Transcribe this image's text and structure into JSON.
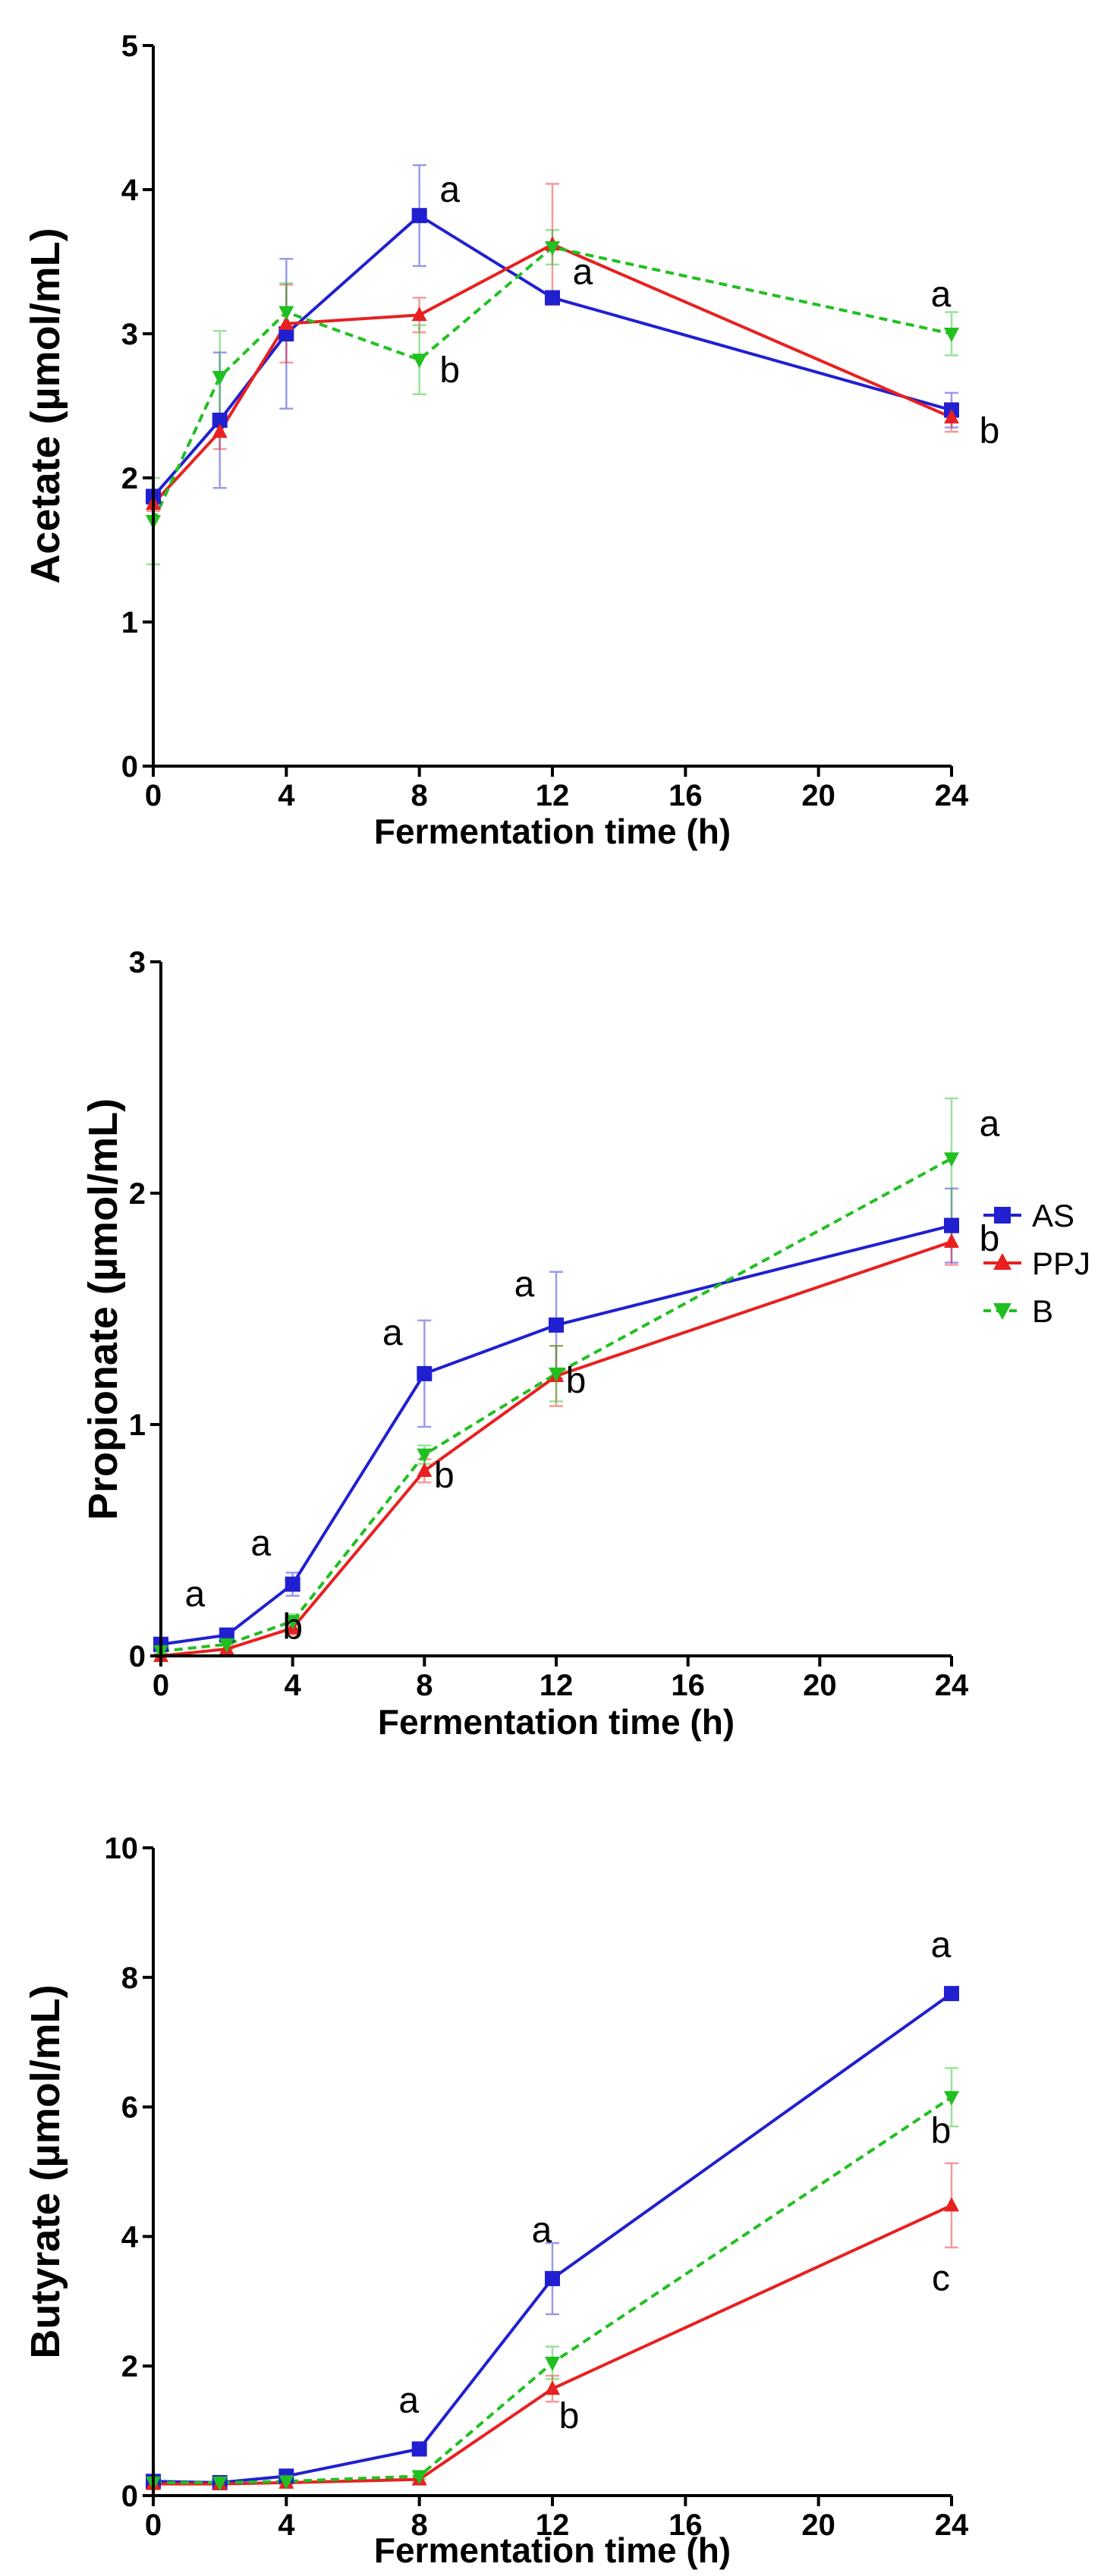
{
  "colors": {
    "AS": "#2020d0",
    "PPJ": "#e82020",
    "B": "#20c020"
  },
  "legend": {
    "items": [
      {
        "key": "AS",
        "label": "AS"
      },
      {
        "key": "PPJ",
        "label": "PPJ"
      },
      {
        "key": "B",
        "label": "B"
      }
    ]
  },
  "chart_data": [
    {
      "type": "line",
      "title": "",
      "xlabel": "Fermentation time (h)",
      "ylabel": "Acetate (µmol/mL)",
      "xlim": [
        0,
        24
      ],
      "ylim": [
        0,
        5
      ],
      "xticks": [
        0,
        4,
        8,
        12,
        16,
        20,
        24
      ],
      "yticks": [
        0,
        1,
        2,
        3,
        4,
        5
      ],
      "x": [
        0,
        2,
        4,
        8,
        12,
        24
      ],
      "series": [
        {
          "name": "AS",
          "marker": "square",
          "style": "solid",
          "values": [
            1.87,
            2.4,
            3.0,
            3.82,
            3.25,
            2.47
          ],
          "errors": [
            0.05,
            0.47,
            0.52,
            0.35,
            0.04,
            0.12
          ]
        },
        {
          "name": "PPJ",
          "marker": "triangle-up",
          "style": "solid",
          "values": [
            1.82,
            2.32,
            3.07,
            3.13,
            3.62,
            2.42
          ],
          "errors": [
            0.05,
            0.12,
            0.27,
            0.12,
            0.42,
            0.1
          ]
        },
        {
          "name": "B",
          "marker": "triangle-down",
          "style": "dashed",
          "values": [
            1.7,
            2.7,
            3.15,
            2.82,
            3.6,
            3.0
          ],
          "errors": [
            0.3,
            0.32,
            0.2,
            0.24,
            0.12,
            0.15
          ]
        }
      ],
      "annotations": [
        {
          "text": "a",
          "x": 8,
          "y": 3.82
        },
        {
          "text": "b",
          "x": 8,
          "y": 2.82
        },
        {
          "text": "a",
          "x": 12,
          "y": 3.25
        },
        {
          "text": "a",
          "x": 24,
          "y": 3.0
        },
        {
          "text": "b",
          "x": 24,
          "y": 2.42
        }
      ]
    },
    {
      "type": "line",
      "title": "",
      "xlabel": "Fermentation time (h)",
      "ylabel": "Propionate (µmol/mL)",
      "xlim": [
        0,
        24
      ],
      "ylim": [
        0,
        3
      ],
      "xticks": [
        0,
        4,
        8,
        12,
        16,
        20,
        24
      ],
      "yticks": [
        0,
        1,
        2,
        3
      ],
      "x": [
        0,
        2,
        4,
        8,
        12,
        24
      ],
      "series": [
        {
          "name": "AS",
          "marker": "square",
          "style": "solid",
          "values": [
            0.05,
            0.09,
            0.31,
            1.22,
            1.43,
            1.86
          ],
          "errors": [
            0.02,
            0.02,
            0.05,
            0.23,
            0.23,
            0.16
          ]
        },
        {
          "name": "PPJ",
          "marker": "triangle-up",
          "style": "solid",
          "values": [
            0.0,
            0.03,
            0.12,
            0.8,
            1.21,
            1.79
          ],
          "errors": [
            0.01,
            0.02,
            0.03,
            0.05,
            0.13,
            0.1
          ]
        },
        {
          "name": "B",
          "marker": "triangle-down",
          "style": "dashed",
          "values": [
            0.02,
            0.05,
            0.15,
            0.87,
            1.22,
            2.15
          ],
          "errors": [
            0.01,
            0.02,
            0.03,
            0.04,
            0.12,
            0.26
          ]
        }
      ],
      "annotations": [
        {
          "text": "a",
          "x": 2,
          "y": 0.09
        },
        {
          "text": "a",
          "x": 4,
          "y": 0.31
        },
        {
          "text": "b",
          "x": 4,
          "y": 0.12
        },
        {
          "text": "a",
          "x": 8,
          "y": 1.22
        },
        {
          "text": "b",
          "x": 8,
          "y": 0.8
        },
        {
          "text": "a",
          "x": 12,
          "y": 1.43
        },
        {
          "text": "b",
          "x": 12,
          "y": 1.21
        },
        {
          "text": "a",
          "x": 24,
          "y": 2.15
        },
        {
          "text": "b",
          "x": 24,
          "y": 1.79
        }
      ]
    },
    {
      "type": "line",
      "title": "",
      "xlabel": "Fermentation time (h)",
      "ylabel": "Butyrate (µmol/mL)",
      "xlim": [
        0,
        24
      ],
      "ylim": [
        0,
        10
      ],
      "xticks": [
        0,
        4,
        8,
        12,
        16,
        20,
        24
      ],
      "yticks": [
        0,
        2,
        4,
        6,
        8,
        10
      ],
      "x": [
        0,
        2,
        4,
        8,
        12,
        24
      ],
      "series": [
        {
          "name": "AS",
          "marker": "square",
          "style": "solid",
          "values": [
            0.22,
            0.2,
            0.3,
            0.72,
            3.35,
            7.75
          ],
          "errors": [
            0.05,
            0.04,
            0.05,
            0.08,
            0.55,
            0.08
          ]
        },
        {
          "name": "PPJ",
          "marker": "triangle-up",
          "style": "solid",
          "values": [
            0.18,
            0.18,
            0.2,
            0.25,
            1.65,
            4.48
          ],
          "errors": [
            0.03,
            0.03,
            0.03,
            0.05,
            0.2,
            0.65
          ]
        },
        {
          "name": "B",
          "marker": "triangle-down",
          "style": "dashed",
          "values": [
            0.2,
            0.2,
            0.22,
            0.3,
            2.05,
            6.15
          ],
          "errors": [
            0.03,
            0.03,
            0.03,
            0.05,
            0.25,
            0.45
          ]
        }
      ],
      "annotations": [
        {
          "text": "a",
          "x": 8,
          "y": 0.72
        },
        {
          "text": "a",
          "x": 12,
          "y": 3.35
        },
        {
          "text": "b",
          "x": 12,
          "y": 1.65
        },
        {
          "text": "a",
          "x": 24,
          "y": 7.75
        },
        {
          "text": "b",
          "x": 24,
          "y": 6.15
        },
        {
          "text": "c",
          "x": 24,
          "y": 4.48
        }
      ]
    }
  ]
}
